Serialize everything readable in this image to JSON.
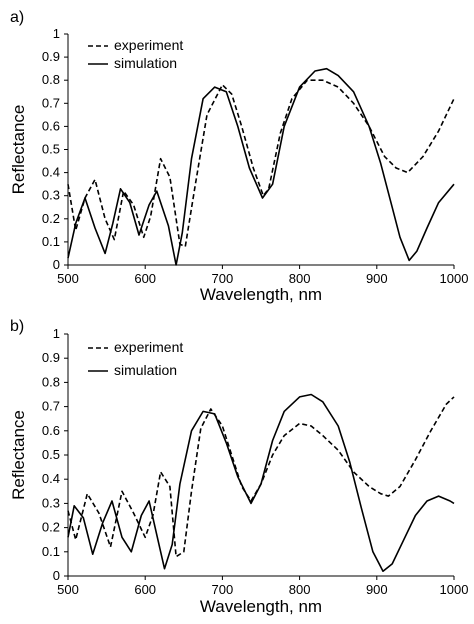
{
  "chart_data": [
    {
      "type": "line",
      "panel_label": "a)",
      "xlabel": "Wavelength, nm",
      "ylabel": "Reflectance",
      "xlim": [
        500,
        1000
      ],
      "ylim": [
        0,
        1
      ],
      "xticks": [
        "500",
        "600",
        "700",
        "800",
        "900",
        "1000"
      ],
      "yticks": [
        "0",
        "0.1",
        "0.2",
        "0.3",
        "0.4",
        "0.5",
        "0.6",
        "0.7",
        "0.8",
        "0.9",
        "1"
      ],
      "grid": false,
      "legend_position": "top-left",
      "series": [
        {
          "name": "experiment",
          "style": "dashed",
          "x": [
            500,
            510,
            522,
            535,
            548,
            560,
            572,
            585,
            598,
            607,
            620,
            632,
            645,
            652,
            665,
            680,
            700,
            712,
            725,
            740,
            753,
            760,
            775,
            790,
            810,
            830,
            850,
            870,
            890,
            910,
            925,
            940,
            960,
            980,
            990,
            1000
          ],
          "y": [
            0.35,
            0.15,
            0.29,
            0.37,
            0.2,
            0.11,
            0.32,
            0.26,
            0.12,
            0.21,
            0.46,
            0.38,
            0.09,
            0.08,
            0.35,
            0.65,
            0.78,
            0.74,
            0.6,
            0.42,
            0.3,
            0.33,
            0.57,
            0.72,
            0.8,
            0.8,
            0.77,
            0.7,
            0.6,
            0.47,
            0.42,
            0.4,
            0.47,
            0.58,
            0.65,
            0.72
          ]
        },
        {
          "name": "simulation",
          "style": "solid",
          "x": [
            500,
            510,
            522,
            535,
            548,
            558,
            568,
            580,
            592,
            605,
            615,
            630,
            640,
            648,
            660,
            675,
            690,
            705,
            720,
            735,
            752,
            765,
            780,
            800,
            820,
            835,
            850,
            870,
            890,
            905,
            920,
            930,
            942,
            952,
            965,
            980,
            1000
          ],
          "y": [
            0.03,
            0.18,
            0.29,
            0.16,
            0.05,
            0.18,
            0.33,
            0.27,
            0.13,
            0.26,
            0.32,
            0.17,
            0.0,
            0.14,
            0.46,
            0.72,
            0.77,
            0.75,
            0.6,
            0.42,
            0.29,
            0.35,
            0.6,
            0.77,
            0.84,
            0.85,
            0.82,
            0.75,
            0.6,
            0.44,
            0.25,
            0.12,
            0.02,
            0.06,
            0.16,
            0.27,
            0.35
          ]
        }
      ]
    },
    {
      "type": "line",
      "panel_label": "b)",
      "xlabel": "Wavelength, nm",
      "ylabel": "Reflectance",
      "xlim": [
        500,
        1000
      ],
      "ylim": [
        0,
        1
      ],
      "xticks": [
        "500",
        "600",
        "700",
        "800",
        "900",
        "1000"
      ],
      "yticks": [
        "0",
        "0.1",
        "0.2",
        "0.3",
        "0.4",
        "0.5",
        "0.6",
        "0.7",
        "0.8",
        "0.9",
        "1"
      ],
      "grid": false,
      "legend_position": "top-left",
      "series": [
        {
          "name": "experiment",
          "style": "dashed",
          "x": [
            500,
            510,
            525,
            540,
            555,
            570,
            585,
            600,
            610,
            620,
            632,
            640,
            650,
            660,
            672,
            685,
            700,
            715,
            725,
            737,
            750,
            765,
            780,
            800,
            815,
            830,
            850,
            870,
            890,
            905,
            915,
            930,
            950,
            970,
            990,
            1000
          ],
          "y": [
            0.27,
            0.15,
            0.34,
            0.26,
            0.12,
            0.35,
            0.26,
            0.16,
            0.25,
            0.43,
            0.37,
            0.08,
            0.1,
            0.35,
            0.61,
            0.69,
            0.62,
            0.47,
            0.37,
            0.31,
            0.38,
            0.5,
            0.58,
            0.63,
            0.62,
            0.58,
            0.52,
            0.43,
            0.37,
            0.34,
            0.33,
            0.37,
            0.48,
            0.6,
            0.71,
            0.74
          ]
        },
        {
          "name": "simulation",
          "style": "solid",
          "x": [
            500,
            508,
            520,
            532,
            545,
            557,
            570,
            582,
            595,
            605,
            615,
            625,
            635,
            645,
            660,
            675,
            690,
            705,
            720,
            737,
            750,
            765,
            780,
            800,
            815,
            830,
            850,
            865,
            880,
            895,
            908,
            920,
            935,
            950,
            965,
            980,
            995,
            1000
          ],
          "y": [
            0.16,
            0.29,
            0.24,
            0.09,
            0.22,
            0.31,
            0.16,
            0.1,
            0.25,
            0.31,
            0.17,
            0.03,
            0.13,
            0.38,
            0.6,
            0.68,
            0.67,
            0.55,
            0.41,
            0.3,
            0.38,
            0.56,
            0.68,
            0.74,
            0.75,
            0.72,
            0.62,
            0.47,
            0.28,
            0.1,
            0.02,
            0.05,
            0.15,
            0.25,
            0.31,
            0.33,
            0.31,
            0.3
          ]
        }
      ]
    }
  ]
}
